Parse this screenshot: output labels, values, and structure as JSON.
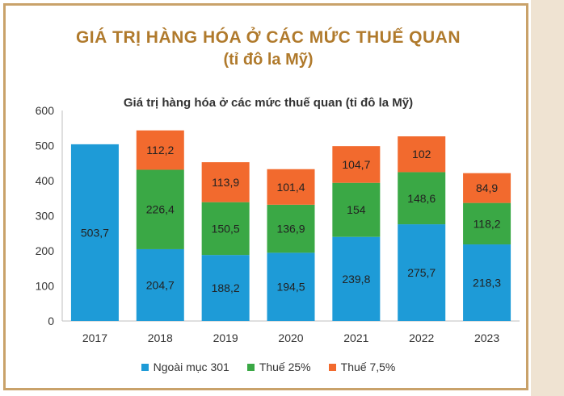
{
  "header": {
    "title": "GIÁ TRỊ HÀNG HÓA Ở CÁC MỨC THUẾ QUAN",
    "subtitle": "(tỉ đô la Mỹ)"
  },
  "chart_data": {
    "type": "bar",
    "stacked": true,
    "title": "Giá trị hàng hóa ở các mức thuế quan (tỉ đô la Mỹ)",
    "xlabel": "",
    "ylabel": "",
    "categories": [
      "2017",
      "2018",
      "2019",
      "2020",
      "2021",
      "2022",
      "2023"
    ],
    "ylim": [
      0,
      600
    ],
    "yticks": [
      0,
      100,
      200,
      300,
      400,
      500,
      600
    ],
    "grid": false,
    "legend_position": "bottom",
    "series": [
      {
        "name": "Ngoài mục 301",
        "color": "#1e9bd7",
        "values": [
          503.7,
          204.7,
          188.2,
          194.5,
          239.8,
          275.7,
          218.3
        ],
        "labels": [
          "503,7",
          "204,7",
          "188,2",
          "194,5",
          "239,8",
          "275,7",
          "218,3"
        ]
      },
      {
        "name": "Thuế 25%",
        "color": "#3aa845",
        "values": [
          0,
          226.4,
          150.5,
          136.9,
          154,
          148.6,
          118.2
        ],
        "labels": [
          "",
          "226,4",
          "150,5",
          "136,9",
          "154",
          "148,6",
          "118,2"
        ]
      },
      {
        "name": "Thuế 7,5%",
        "color": "#f26a2e",
        "values": [
          0,
          112.2,
          113.9,
          101.4,
          104.7,
          102,
          84.9
        ],
        "labels": [
          "",
          "112,2",
          "113,9",
          "101,4",
          "104,7",
          "102",
          "84,9"
        ]
      }
    ]
  }
}
